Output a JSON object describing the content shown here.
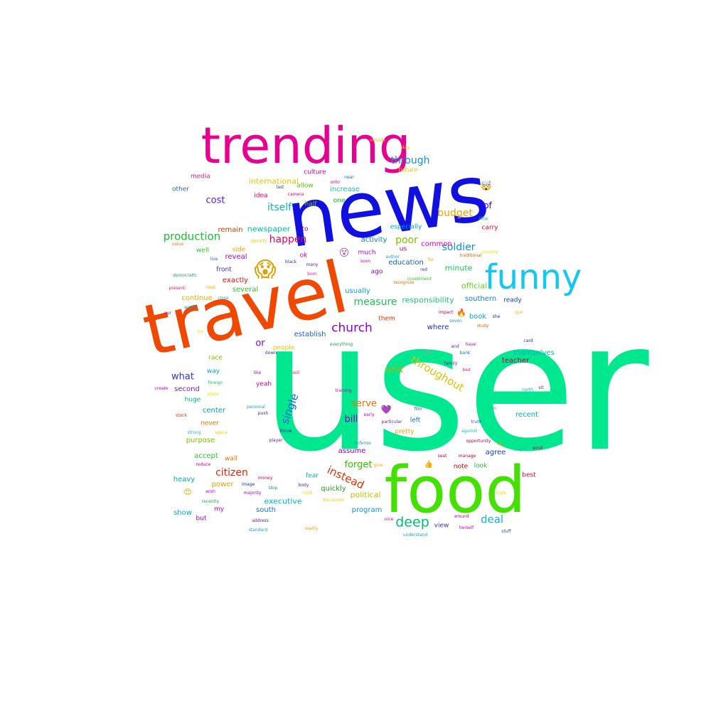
{
  "words": [
    {
      "text": "user",
      "color": "#00e88f"
    },
    {
      "text": "news",
      "color": "#1010e0"
    },
    {
      "text": "travel",
      "color": "#f04800"
    },
    {
      "text": "food",
      "color": "#44e000"
    },
    {
      "text": "trending",
      "color": "#e80090"
    },
    {
      "text": "funny",
      "color": "#10c8f0"
    },
    {
      "text": "church",
      "color": "#8a00e0"
    },
    {
      "text": "deep",
      "color": "#00c070"
    },
    {
      "text": "instead",
      "color": "#e03000"
    },
    {
      "text": "production",
      "color": "#18c030"
    },
    {
      "text": "measure",
      "color": "#20c060"
    },
    {
      "text": "throughout",
      "color": "#e0c000"
    },
    {
      "text": "soldier",
      "color": "#1090d0"
    },
    {
      "text": "budget",
      "color": "#f0a000"
    },
    {
      "text": "happen",
      "color": "#e80060"
    },
    {
      "text": "poor",
      "color": "#80c000"
    },
    {
      "text": "single",
      "color": "#1060e0"
    },
    {
      "text": "citizen",
      "color": "#f02000"
    },
    {
      "text": "through",
      "color": "#1090e0"
    },
    {
      "text": "itself",
      "color": "#10b0c0"
    },
    {
      "text": "serve",
      "color": "#f07000"
    },
    {
      "text": "forget",
      "color": "#30c000"
    },
    {
      "text": "deal",
      "color": "#10b0e0"
    },
    {
      "text": "cost",
      "color": "#5020d0"
    },
    {
      "text": "unit",
      "color": "#c0b000"
    },
    {
      "text": "what",
      "color": "#3030e0"
    },
    {
      "text": "or",
      "color": "#8000f0"
    },
    {
      "text": "bill",
      "color": "#9000c0"
    },
    {
      "text": "of",
      "color": "#4000f0"
    },
    {
      "text": "executive",
      "color": "#00b8d0"
    },
    {
      "text": "responsibility",
      "color": "#20c080"
    },
    {
      "text": "official",
      "color": "#60d020"
    },
    {
      "text": "international",
      "color": "#f0c000"
    },
    {
      "text": "newspaper",
      "color": "#00c0a0"
    },
    {
      "text": "education",
      "color": "#1060c0"
    },
    {
      "text": "themselves",
      "color": "#00b0c0"
    },
    {
      "text": "southern",
      "color": "#1080d0"
    },
    {
      "text": "minute",
      "color": "#20c060"
    },
    {
      "text": "political",
      "color": "#c0c000"
    },
    {
      "text": "common",
      "color": "#e000b0"
    },
    {
      "text": "activity",
      "color": "#1080c0"
    },
    {
      "text": "establish",
      "color": "#2060d0"
    },
    {
      "text": "program",
      "color": "#1090e0"
    },
    {
      "text": "usually",
      "color": "#10a0d0"
    },
    {
      "text": "increase",
      "color": "#20c0b0"
    },
    {
      "text": "remain",
      "color": "#c04000"
    },
    {
      "text": "continue",
      "color": "#e0b000"
    },
    {
      "text": "several",
      "color": "#30c030"
    },
    {
      "text": "exactly",
      "color": "#e01000"
    },
    {
      "text": "reveal",
      "color": "#b000c0"
    },
    {
      "text": "assume",
      "color": "#9000c0"
    },
    {
      "text": "teacher",
      "color": "#c00040"
    },
    {
      "text": "recent",
      "color": "#00b0b0"
    },
    {
      "text": "quickly",
      "color": "#20a020"
    },
    {
      "text": "agree",
      "color": "#1040d0"
    },
    {
      "text": "purpose",
      "color": "#80c000"
    },
    {
      "text": "accept",
      "color": "#30c030"
    },
    {
      "text": "center",
      "color": "#00a0c0"
    },
    {
      "text": "second",
      "color": "#8020c0"
    },
    {
      "text": "power",
      "color": "#e0a000"
    },
    {
      "text": "south",
      "color": "#1070d0"
    },
    {
      "text": "heavy",
      "color": "#00b090"
    },
    {
      "text": "show",
      "color": "#00b0c0"
    },
    {
      "text": "where",
      "color": "#2030b0"
    },
    {
      "text": "book",
      "color": "#00b0c0"
    },
    {
      "text": "ready",
      "color": "#1040b0"
    },
    {
      "text": "media",
      "color": "#e02080"
    },
    {
      "text": "other",
      "color": "#3060b0"
    },
    {
      "text": "culture",
      "color": "#c000a0"
    },
    {
      "text": "allow",
      "color": "#60c000"
    },
    {
      "text": "idea",
      "color": "#e00060"
    },
    {
      "text": "half",
      "color": "#80c000"
    },
    {
      "text": "one",
      "color": "#00b000"
    },
    {
      "text": "especially",
      "color": "#00a0d0"
    },
    {
      "text": "much",
      "color": "#c000c0"
    },
    {
      "text": "ago",
      "color": "#8000c0"
    },
    {
      "text": "us",
      "color": "#c00070"
    },
    {
      "text": "left",
      "color": "#1070d0"
    },
    {
      "text": "pretty",
      "color": "#e0a000"
    },
    {
      "text": "note",
      "color": "#c00000"
    },
    {
      "text": "look",
      "color": "#20c040"
    },
    {
      "text": "view",
      "color": "#3030c0"
    },
    {
      "text": "best",
      "color": "#e00030"
    },
    {
      "text": "carry",
      "color": "#e00030"
    },
    {
      "text": "them",
      "color": "#f03000"
    },
    {
      "text": "to",
      "color": "#8000c0"
    },
    {
      "text": "ok",
      "color": "#c000c0"
    },
    {
      "text": "side",
      "color": "#f0a000"
    },
    {
      "text": "well",
      "color": "#30c030"
    },
    {
      "text": "front",
      "color": "#3030c0"
    },
    {
      "text": "race",
      "color": "#80c000"
    },
    {
      "text": "way",
      "color": "#00a0d0"
    },
    {
      "text": "huge",
      "color": "#00b090"
    },
    {
      "text": "never",
      "color": "#f07000"
    },
    {
      "text": "wall",
      "color": "#f07000"
    },
    {
      "text": "fear",
      "color": "#00b0b0"
    },
    {
      "text": "my",
      "color": "#c000c0"
    },
    {
      "text": "but",
      "color": "#8000c0"
    },
    {
      "text": "people",
      "color": "#f0c000"
    },
    {
      "text": "yeah",
      "color": "#c000a0"
    },
    {
      "text": "😱",
      "color": "#e0a000"
    },
    {
      "text": "🤯",
      "color": "#c02060"
    },
    {
      "text": "😵",
      "color": "#c060a0"
    },
    {
      "text": "😍",
      "color": "#e0b000"
    },
    {
      "text": "💜",
      "color": "#a040e0"
    },
    {
      "text": "👍",
      "color": "#e0a000"
    },
    {
      "text": "🔥",
      "color": "#f04000"
    },
    {
      "text": "😊",
      "color": "#a0a0a0"
    },
    {
      "text": "last",
      "color": "#3030b0"
    },
    {
      "text": "near",
      "color": "#1060c0"
    },
    {
      "text": "onto",
      "color": "#c000c0"
    },
    {
      "text": "camera",
      "color": "#d00080"
    },
    {
      "text": "outside",
      "color": "#f0c000"
    },
    {
      "text": "stay",
      "color": "#f0e000"
    },
    {
      "text": "future",
      "color": "#f0c000"
    },
    {
      "text": "stop",
      "color": "#20c080"
    },
    {
      "text": "identify",
      "color": "#f0d000"
    },
    {
      "text": "value",
      "color": "#e08000"
    },
    {
      "text": "live",
      "color": "#1070d0"
    },
    {
      "text": "black",
      "color": "#3030c0"
    },
    {
      "text": "many",
      "color": "#6020a0"
    },
    {
      "text": "born",
      "color": "#e02080"
    },
    {
      "text": "author",
      "color": "#20a0d0"
    },
    {
      "text": "soon",
      "color": "#c000c0"
    },
    {
      "text": "for",
      "color": "#f0b000"
    },
    {
      "text": "red",
      "color": "#3030c0"
    },
    {
      "text": "investment",
      "color": "#30c030"
    },
    {
      "text": "recognize",
      "color": "#e07000"
    },
    {
      "text": "traditional",
      "color": "#e06000"
    },
    {
      "text": "country",
      "color": "#f0e000"
    },
    {
      "text": "democratic",
      "color": "#20a060"
    },
    {
      "text": "present",
      "color": "#e02060"
    },
    {
      "text": "road",
      "color": "#f0b000"
    },
    {
      "text": "close",
      "color": "#20a0c0"
    },
    {
      "text": "watch",
      "color": "#00b0c0"
    },
    {
      "text": "our",
      "color": "#c000c0"
    },
    {
      "text": "try",
      "color": "#f0e000"
    },
    {
      "text": "impact",
      "color": "#c00040"
    },
    {
      "text": "seven",
      "color": "#20a0c0"
    },
    {
      "text": "study",
      "color": "#e07000"
    },
    {
      "text": "she",
      "color": "#2030b0"
    },
    {
      "text": "gun",
      "color": "#f0b000"
    },
    {
      "text": "card",
      "color": "#2030b0"
    },
    {
      "text": "and",
      "color": "#6020a0"
    },
    {
      "text": "have",
      "color": "#c000c0"
    },
    {
      "text": "bank",
      "color": "#1070d0"
    },
    {
      "text": "family",
      "color": "#6020a0"
    },
    {
      "text": "bed",
      "color": "#e02060"
    },
    {
      "text": "down",
      "color": "#3030b0"
    },
    {
      "text": "everything",
      "color": "#20a060"
    },
    {
      "text": "foreign",
      "color": "#20c080"
    },
    {
      "text": "like",
      "color": "#c000c0"
    },
    {
      "text": "sell",
      "color": "#e02080"
    },
    {
      "text": "create",
      "color": "#c000c0"
    },
    {
      "text": "place",
      "color": "#f0e000"
    },
    {
      "text": "training",
      "color": "#c000c0"
    },
    {
      "text": "early",
      "color": "#c000c0"
    },
    {
      "text": "film",
      "color": "#2060c0"
    },
    {
      "text": "north",
      "color": "#20a0c0"
    },
    {
      "text": "sit",
      "color": "#c00040"
    },
    {
      "text": "stock",
      "color": "#e03000"
    },
    {
      "text": "personal",
      "color": "#20a0c0"
    },
    {
      "text": "push",
      "color": "#6020a0"
    },
    {
      "text": "particular",
      "color": "#6020a0"
    },
    {
      "text": "son",
      "color": "#20c080"
    },
    {
      "text": "strong",
      "color": "#20c0c0"
    },
    {
      "text": "space",
      "color": "#f0d000"
    },
    {
      "text": "throw",
      "color": "#2030b0"
    },
    {
      "text": "truth",
      "color": "#2060c0"
    },
    {
      "text": "against",
      "color": "#20c0c0"
    },
    {
      "text": "player",
      "color": "#6020a0"
    },
    {
      "text": "defense",
      "color": "#20a0c0"
    },
    {
      "text": "reduce",
      "color": "#c000c0"
    },
    {
      "text": "give",
      "color": "#f0b000"
    },
    {
      "text": "seat",
      "color": "#c00040"
    },
    {
      "text": "manage",
      "color": "#c00040"
    },
    {
      "text": "opportunity",
      "color": "#c00040"
    },
    {
      "text": "set",
      "color": "#e0a000"
    },
    {
      "text": "simple",
      "color": "#20c0c0"
    },
    {
      "text": "wind",
      "color": "#c00040"
    },
    {
      "text": "money",
      "color": "#e00030"
    },
    {
      "text": "image",
      "color": "#2030b0"
    },
    {
      "text": "body",
      "color": "#6020a0"
    },
    {
      "text": "stop",
      "color": "#20a060"
    },
    {
      "text": "wish",
      "color": "#c000c0"
    },
    {
      "text": "majority",
      "color": "#c000c0"
    },
    {
      "text": "cost",
      "color": "#f0d000"
    },
    {
      "text": "discussion",
      "color": "#f0d000"
    },
    {
      "text": "style",
      "color": "#f0e000"
    },
    {
      "text": "recently",
      "color": "#20a060"
    },
    {
      "text": "address",
      "color": "#6020a0"
    },
    {
      "text": "standard",
      "color": "#20a0c0"
    },
    {
      "text": "reality",
      "color": "#e0a000"
    },
    {
      "text": "nice",
      "color": "#c000c0"
    },
    {
      "text": "understand",
      "color": "#20a0c0"
    },
    {
      "text": "around",
      "color": "#c000c0"
    },
    {
      "text": "herself",
      "color": "#c000c0"
    },
    {
      "text": "stuff",
      "color": "#2060c0"
    }
  ]
}
